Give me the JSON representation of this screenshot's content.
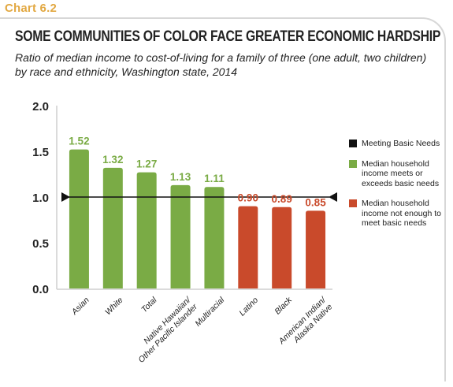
{
  "chart_label": "Chart 6.2",
  "chart_data": {
    "type": "bar",
    "title": "SOME COMMUNITIES OF COLOR FACE GREATER ECONOMIC HARDSHIP",
    "subtitle": "Ratio of median income to cost-of-living for a family of three (one adult, two children) by race and ethnicity, Washington state, 2014",
    "categories": [
      [
        "Asian"
      ],
      [
        "White"
      ],
      [
        "Total"
      ],
      [
        "Native Hawaiian/",
        "Other Pacific Islander"
      ],
      [
        "Multiracial"
      ],
      [
        "Latino"
      ],
      [
        "Black"
      ],
      [
        "American Indian/",
        "Alaska Native"
      ]
    ],
    "values": [
      1.52,
      1.32,
      1.27,
      1.13,
      1.11,
      0.9,
      0.89,
      0.85
    ],
    "value_labels": [
      "1.52",
      "1.32",
      "1.27",
      "1.13",
      "1.11",
      "0.90",
      "0.89",
      "0.85"
    ],
    "ylim": [
      0,
      2.0
    ],
    "yticks": [
      "0.0",
      "0.5",
      "1.0",
      "1.5",
      "2.0"
    ],
    "ytick_values": [
      0,
      0.5,
      1.0,
      1.5,
      2.0
    ],
    "reference_line": 1.0,
    "grid": false,
    "legend_position": "right",
    "legend": [
      {
        "label": "Meeting Basic Needs",
        "color": "#111111"
      },
      {
        "label": "Median household income meets or exceeds basic needs",
        "color": "#7aab45"
      },
      {
        "label": "Median household income not enough to meet basic needs",
        "color": "#c94a2b"
      }
    ],
    "colors": {
      "above": "#7aab45",
      "below": "#c94a2b",
      "line": "#111111"
    }
  }
}
